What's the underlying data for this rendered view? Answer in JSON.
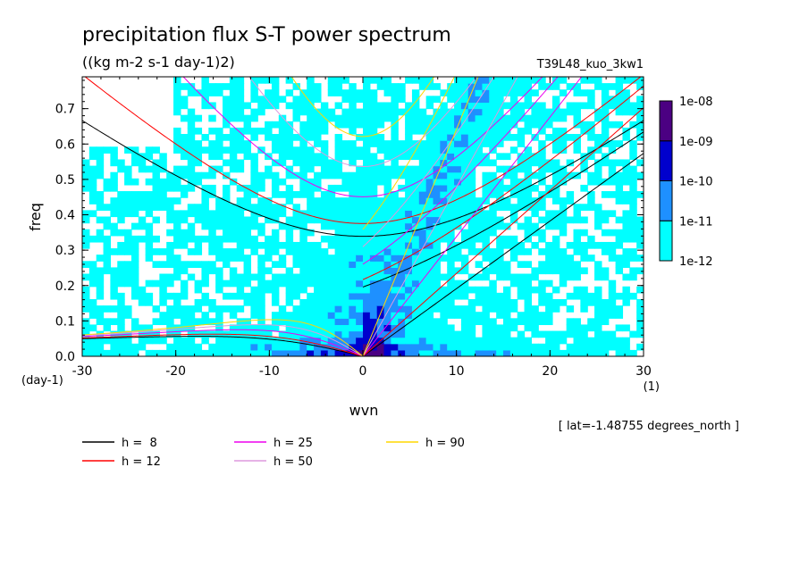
{
  "chart_data": {
    "type": "heatmap",
    "title": "precipitation flux S-T power spectrum",
    "subtitle": "((kg m-2 s-1 day-1)2)",
    "run_label": "T39L48_kuo_3kw1",
    "xlabel": "wvn",
    "ylabel": "freq",
    "x_unit": "(1)",
    "y_unit": "(day-1)",
    "xlim": [
      -30,
      30
    ],
    "ylim": [
      0,
      0.79
    ],
    "x_ticks": [
      "-30",
      "-20",
      "-10",
      "0",
      "10",
      "20",
      "30"
    ],
    "y_ticks": [
      "0.0",
      "0.1",
      "0.2",
      "0.3",
      "0.4",
      "0.5",
      "0.6",
      "0.7"
    ],
    "colorbar": {
      "levels": [
        "1e-12",
        "1e-11",
        "1e-10",
        "1e-09",
        "1e-08"
      ],
      "colors": [
        "#00ffff",
        "#1e90ff",
        "#0000cd",
        "#4b0082"
      ]
    },
    "background_fill_color": "#ffffff",
    "note": "[ lat=-1.48755 degrees_north ]",
    "dispersion_curves": [
      {
        "label": "h =  8",
        "h": 8,
        "color": "#000000"
      },
      {
        "label": "h = 12",
        "h": 12,
        "color": "#ff0000"
      },
      {
        "label": "h = 25",
        "h": 25,
        "color": "#ee00ee"
      },
      {
        "label": "h = 50",
        "h": 50,
        "color": "#dd99dd"
      },
      {
        "label": "h = 90",
        "h": 90,
        "color": "#ffd700"
      }
    ]
  }
}
